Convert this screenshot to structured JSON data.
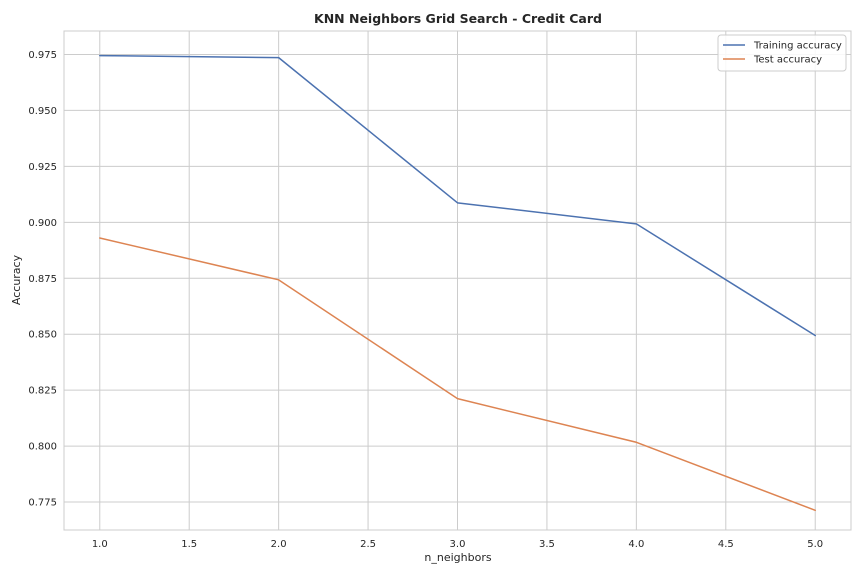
{
  "chart_data": {
    "type": "line",
    "title": "KNN Neighbors Grid Search - Credit Card",
    "xlabel": "n_neighbors",
    "ylabel": "Accuracy",
    "x": [
      1.0,
      2.0,
      3.0,
      4.0,
      5.0
    ],
    "x_ticks": [
      "1.0",
      "1.5",
      "2.0",
      "2.5",
      "3.0",
      "3.5",
      "4.0",
      "4.5",
      "5.0"
    ],
    "y_ticks": [
      "0.775",
      "0.800",
      "0.825",
      "0.850",
      "0.875",
      "0.900",
      "0.925",
      "0.950",
      "0.975"
    ],
    "xlim": [
      0.8,
      5.2
    ],
    "ylim": [
      0.7625,
      0.9855
    ],
    "grid": true,
    "legend": "top-right",
    "series": [
      {
        "name": "Training accuracy",
        "color": "#4c72b0",
        "values": [
          0.9745,
          0.9736,
          0.9087,
          0.8993,
          0.8494
        ]
      },
      {
        "name": "Test accuracy",
        "color": "#dd8452",
        "values": [
          0.893,
          0.8743,
          0.8212,
          0.8017,
          0.7713
        ]
      }
    ]
  }
}
